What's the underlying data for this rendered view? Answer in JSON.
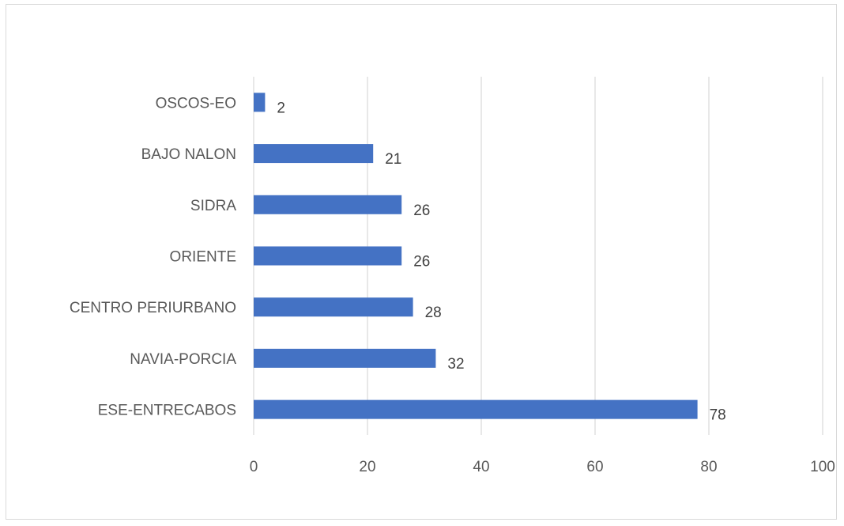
{
  "chart_data": {
    "type": "bar",
    "orientation": "horizontal",
    "categories": [
      "OSCOS-EO",
      "BAJO NALON",
      "SIDRA",
      "ORIENTE",
      "CENTRO PERIURBANO",
      "NAVIA-PORCIA",
      "ESE-ENTRECABOS"
    ],
    "values": [
      2,
      21,
      26,
      26,
      28,
      32,
      78
    ],
    "x_ticks": [
      "0",
      "20",
      "40",
      "60",
      "80",
      "100"
    ],
    "xlim": [
      0,
      100
    ],
    "grid": true,
    "legend": "none",
    "data_labels": true,
    "colors": {
      "bar": "#4472C4",
      "grid": "#d9d9d9",
      "text": "#595959"
    }
  }
}
